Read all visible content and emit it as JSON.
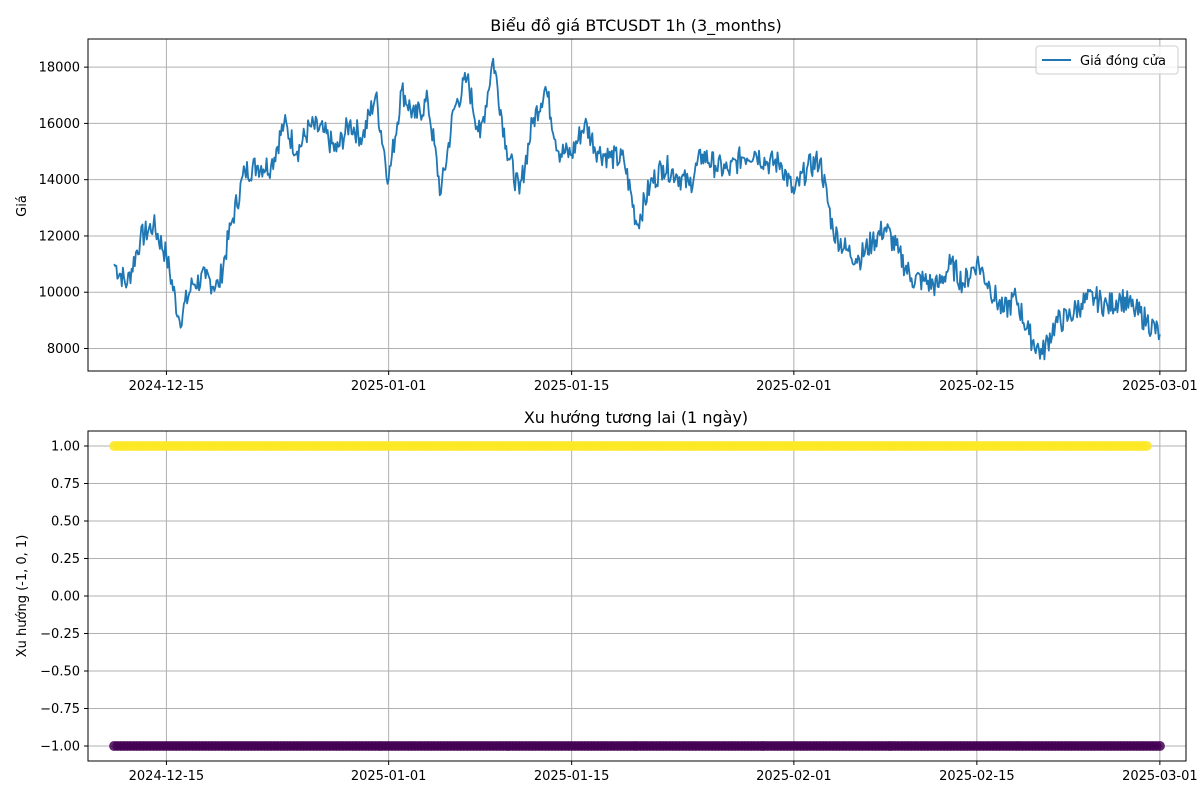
{
  "chart_data": [
    {
      "type": "line",
      "title": "Biểu đồ giá BTCUSDT 1h (3_months)",
      "xlabel": "",
      "ylabel": "Giá",
      "grid": true,
      "legend_position": "top-right",
      "x_range": [
        "2024-12-09",
        "2025-03-03"
      ],
      "ylim": [
        7200,
        19000
      ],
      "x_ticks": [
        "2024-12-15",
        "2025-01-01",
        "2025-01-15",
        "2025-02-01",
        "2025-02-15",
        "2025-03-01"
      ],
      "y_ticks": [
        8000,
        10000,
        12000,
        14000,
        16000,
        18000
      ],
      "line_color": "#1f77b4",
      "series": [
        {
          "name": "Giá đóng cửa",
          "x": [
            "2024-12-11",
            "2024-12-12",
            "2024-12-13",
            "2024-12-14",
            "2024-12-15",
            "2024-12-16",
            "2024-12-17",
            "2024-12-18",
            "2024-12-19",
            "2024-12-20",
            "2024-12-21",
            "2024-12-22",
            "2024-12-23",
            "2024-12-24",
            "2024-12-25",
            "2024-12-26",
            "2024-12-27",
            "2024-12-28",
            "2024-12-29",
            "2024-12-30",
            "2024-12-31",
            "2025-01-01",
            "2025-01-02",
            "2025-01-03",
            "2025-01-04",
            "2025-01-05",
            "2025-01-06",
            "2025-01-07",
            "2025-01-08",
            "2025-01-09",
            "2025-01-10",
            "2025-01-11",
            "2025-01-12",
            "2025-01-13",
            "2025-01-14",
            "2025-01-15",
            "2025-01-16",
            "2025-01-17",
            "2025-01-18",
            "2025-01-19",
            "2025-01-20",
            "2025-01-21",
            "2025-01-22",
            "2025-01-23",
            "2025-01-24",
            "2025-01-25",
            "2025-01-26",
            "2025-01-27",
            "2025-01-28",
            "2025-01-29",
            "2025-01-30",
            "2025-01-31",
            "2025-02-01",
            "2025-02-02",
            "2025-02-03",
            "2025-02-04",
            "2025-02-05",
            "2025-02-06",
            "2025-02-07",
            "2025-02-08",
            "2025-02-09",
            "2025-02-10",
            "2025-02-11",
            "2025-02-12",
            "2025-02-13",
            "2025-02-14",
            "2025-02-15",
            "2025-02-16",
            "2025-02-17",
            "2025-02-18",
            "2025-02-19",
            "2025-02-20",
            "2025-02-21",
            "2025-02-22",
            "2025-02-23",
            "2025-02-24",
            "2025-02-25",
            "2025-02-26",
            "2025-02-27",
            "2025-02-28",
            "2025-03-01"
          ],
          "values": [
            11000,
            10300,
            11900,
            12400,
            11300,
            9000,
            10300,
            10500,
            10200,
            12500,
            14300,
            14500,
            14500,
            16000,
            15000,
            15900,
            15700,
            15000,
            16000,
            15500,
            17000,
            14000,
            17200,
            16200,
            16800,
            13500,
            16500,
            17600,
            15500,
            18300,
            15200,
            13500,
            16000,
            17300,
            15000,
            14900,
            16000,
            15000,
            14800,
            14700,
            12400,
            13800,
            14500,
            14200,
            13800,
            14900,
            14500,
            14300,
            14800,
            15000,
            14600,
            14600,
            13500,
            14400,
            14700,
            12200,
            11500,
            11200,
            11800,
            12300,
            11400,
            10500,
            10400,
            10200,
            11000,
            10300,
            11100,
            10200,
            9300,
            9800,
            8500,
            7800,
            8900,
            9100,
            9600,
            9800,
            9500,
            9800,
            9400,
            9000,
            8500
          ]
        }
      ]
    },
    {
      "type": "scatter",
      "title": "Xu hướng tương lai (1 ngày)",
      "xlabel": "",
      "ylabel": "Xu hướng (-1, 0, 1)",
      "grid": true,
      "x_range": [
        "2024-12-09",
        "2025-03-03"
      ],
      "ylim": [
        -1.1,
        1.1
      ],
      "x_ticks": [
        "2024-12-15",
        "2025-01-01",
        "2025-01-15",
        "2025-02-01",
        "2025-02-15",
        "2025-03-01"
      ],
      "y_ticks": [
        -1.0,
        -0.75,
        -0.5,
        -0.25,
        0.0,
        0.25,
        0.5,
        0.75,
        1.0
      ],
      "y_tick_labels": [
        "−1.00",
        "−0.75",
        "−0.50",
        "−0.25",
        "0.00",
        "0.25",
        "0.50",
        "0.75",
        "1.00"
      ],
      "point_colors": {
        "1": "#fde725",
        "-1": "#440154"
      },
      "series": [
        {
          "y": 1,
          "x_start": "2024-12-11",
          "x_end": "2025-02-28"
        },
        {
          "y": -1,
          "x_start": "2024-12-11",
          "x_end": "2025-03-01"
        }
      ]
    }
  ]
}
